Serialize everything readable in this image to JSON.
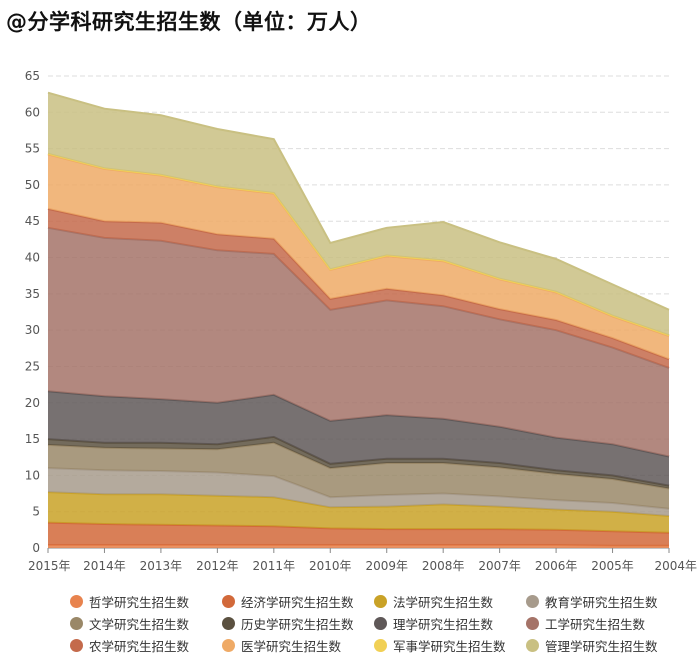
{
  "title": "@分学科研究生招生数（单位：万人）",
  "chart_data": {
    "type": "area",
    "stacked": true,
    "title": "@分学科研究生招生数（单位：万人）",
    "x": [
      "2015年",
      "2014年",
      "2013年",
      "2012年",
      "2011年",
      "2010年",
      "2009年",
      "2008年",
      "2007年",
      "2006年",
      "2005年",
      "2004年"
    ],
    "ylim": [
      0,
      65
    ],
    "yticks": [
      0,
      5,
      10,
      15,
      20,
      25,
      30,
      35,
      40,
      45,
      50,
      55,
      60,
      65
    ],
    "grid": true,
    "legend_position": "bottom",
    "series": [
      {
        "name": "哲学研究生招生数",
        "color": "#e8834e",
        "values": [
          0.4,
          0.4,
          0.4,
          0.4,
          0.4,
          0.4,
          0.4,
          0.4,
          0.4,
          0.4,
          0.3,
          0.3
        ]
      },
      {
        "name": "经济学研究生招生数",
        "color": "#d2693a",
        "values": [
          3.1,
          2.9,
          2.8,
          2.7,
          2.6,
          2.3,
          2.2,
          2.2,
          2.2,
          2.1,
          2.0,
          1.8
        ]
      },
      {
        "name": "法学研究生招生数",
        "color": "#c9a227",
        "values": [
          4.2,
          4.1,
          4.2,
          4.1,
          4.0,
          2.9,
          3.1,
          3.4,
          3.1,
          2.8,
          2.7,
          2.3
        ]
      },
      {
        "name": "教育学研究生招生数",
        "color": "#a79b8c",
        "values": [
          3.3,
          3.3,
          3.2,
          3.2,
          2.9,
          1.4,
          1.6,
          1.5,
          1.4,
          1.3,
          1.2,
          1.0
        ]
      },
      {
        "name": "文学研究生招生数",
        "color": "#9a8868",
        "values": [
          3.2,
          3.1,
          3.1,
          3.2,
          4.6,
          4.0,
          4.4,
          4.2,
          4.0,
          3.6,
          3.3,
          2.8
        ]
      },
      {
        "name": "历史学研究生招生数",
        "color": "#5b5140",
        "values": [
          0.8,
          0.7,
          0.8,
          0.7,
          0.8,
          0.6,
          0.6,
          0.6,
          0.6,
          0.5,
          0.5,
          0.4
        ]
      },
      {
        "name": "理学研究生招生数",
        "color": "#5f5858",
        "values": [
          6.6,
          6.4,
          6.0,
          5.7,
          5.8,
          5.9,
          6.0,
          5.5,
          5.0,
          4.5,
          4.3,
          4.0
        ]
      },
      {
        "name": "工学研究生招生数",
        "color": "#a57368",
        "values": [
          22.5,
          21.8,
          21.8,
          21.0,
          19.4,
          15.3,
          15.8,
          15.5,
          14.8,
          14.8,
          13.3,
          12.2
        ]
      },
      {
        "name": "农学研究生招生数",
        "color": "#c46a4b",
        "values": [
          2.6,
          2.3,
          2.5,
          2.2,
          2.1,
          1.5,
          1.6,
          1.5,
          1.4,
          1.4,
          1.3,
          1.2
        ]
      },
      {
        "name": "医学研究生招生数",
        "color": "#efaa66",
        "values": [
          7.5,
          7.2,
          6.5,
          6.5,
          6.2,
          4.0,
          4.5,
          4.7,
          4.1,
          3.8,
          3.0,
          3.2
        ]
      },
      {
        "name": "军事学研究生招生数",
        "color": "#f1d055",
        "values": [
          0.1,
          0.1,
          0.1,
          0.1,
          0.1,
          0.1,
          0.1,
          0.1,
          0.1,
          0.1,
          0.1,
          0.1
        ]
      },
      {
        "name": "管理学研究生招生数",
        "color": "#c9c082",
        "values": [
          8.4,
          8.2,
          8.2,
          7.9,
          7.4,
          3.6,
          3.8,
          5.3,
          5.0,
          4.5,
          4.3,
          3.5
        ]
      }
    ]
  }
}
